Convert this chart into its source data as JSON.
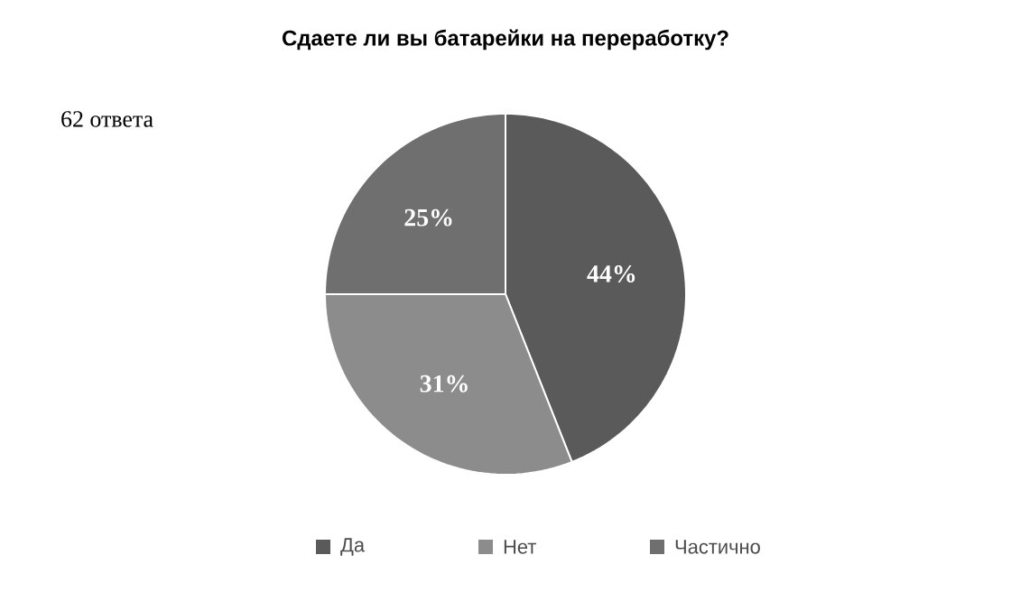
{
  "chart_data": {
    "type": "pie",
    "title": "Сдаете ли вы батарейки на переработку?",
    "subtitle": "62 ответа",
    "categories": [
      "Да",
      "Нет",
      "Частично"
    ],
    "values": [
      44,
      31,
      25
    ],
    "value_labels": [
      "44%",
      "31%",
      "25%"
    ],
    "colors": [
      "#5a5a5a",
      "#8c8c8c",
      "#6f6f6f"
    ],
    "legend": "bottom"
  }
}
